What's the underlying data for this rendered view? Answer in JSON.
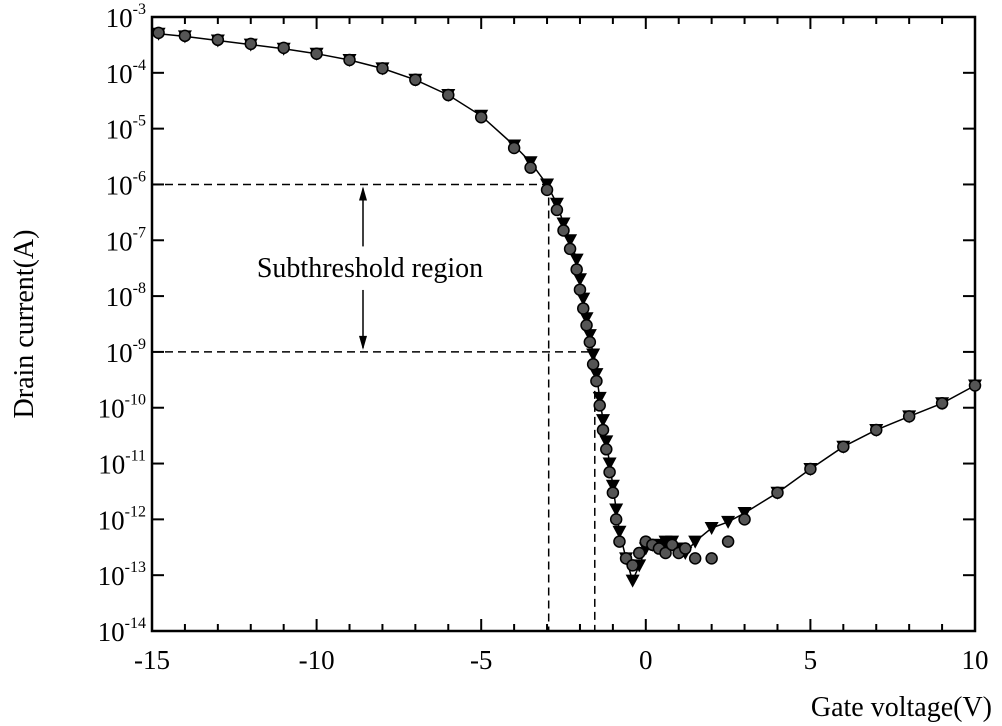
{
  "chart_data": {
    "type": "scatter",
    "xlabel": "Gate voltage(V)",
    "ylabel": "Drain current(A)",
    "xlim": [
      -15,
      10
    ],
    "ylim_exponent": [
      -14,
      -3
    ],
    "yscale": "log",
    "x_ticks": [
      "-15",
      "-10",
      "-5",
      "0",
      "5",
      "10"
    ],
    "y_ticks": [
      {
        "base": "10",
        "exp": "-3"
      },
      {
        "base": "10",
        "exp": "-4"
      },
      {
        "base": "10",
        "exp": "-5"
      },
      {
        "base": "10",
        "exp": "-6"
      },
      {
        "base": "10",
        "exp": "-7"
      },
      {
        "base": "10",
        "exp": "-8"
      },
      {
        "base": "10",
        "exp": "-9"
      },
      {
        "base": "10",
        "exp": "-10"
      },
      {
        "base": "10",
        "exp": "-11"
      },
      {
        "base": "10",
        "exp": "-12"
      },
      {
        "base": "10",
        "exp": "-13"
      },
      {
        "base": "10",
        "exp": "-14"
      }
    ],
    "annotation": {
      "text": "Subthreshold region",
      "y_upper": 1e-06,
      "y_lower": 1e-09,
      "x_upper": -2.95,
      "x_lower": -1.55
    },
    "series": [
      {
        "marker": "triangle-down",
        "x": [
          -14.8,
          -14,
          -13,
          -12,
          -11,
          -10,
          -9,
          -8,
          -7,
          -6,
          -5,
          -4,
          -3.5,
          -3,
          -2.7,
          -2.5,
          -2.3,
          -2.1,
          -2,
          -1.9,
          -1.8,
          -1.7,
          -1.6,
          -1.5,
          -1.4,
          -1.3,
          -1.2,
          -1.1,
          -1,
          -0.9,
          -0.8,
          -0.6,
          -0.4,
          -0.2,
          0,
          0.2,
          0.4,
          0.6,
          0.8,
          1,
          1.2,
          1.5,
          2,
          2.5,
          3,
          4,
          5,
          6,
          7,
          8,
          9,
          10
        ],
        "y": [
          0.0005,
          0.00045,
          0.00038,
          0.00032,
          0.00027,
          0.00022,
          0.00017,
          0.00012,
          7.5e-05,
          4e-05,
          1.7e-05,
          5e-06,
          2.5e-06,
          1e-06,
          4.5e-07,
          2e-07,
          1e-07,
          4.5e-08,
          2e-08,
          9e-09,
          4e-09,
          2e-09,
          9e-10,
          4e-10,
          1.5e-10,
          6e-11,
          2.5e-11,
          1e-11,
          4e-12,
          1.5e-12,
          6e-13,
          2e-13,
          8e-14,
          1.5e-13,
          3e-13,
          3.5e-13,
          3.5e-13,
          4e-13,
          4e-13,
          3e-13,
          2.5e-13,
          4e-13,
          7e-13,
          9e-13,
          1.3e-12,
          3e-12,
          8e-12,
          2e-11,
          4e-11,
          7e-11,
          1.2e-10,
          2.5e-10
        ]
      },
      {
        "marker": "circle",
        "x": [
          -14.8,
          -14,
          -13,
          -12,
          -11,
          -10,
          -9,
          -8,
          -7,
          -6,
          -5,
          -4,
          -3.5,
          -3,
          -2.7,
          -2.5,
          -2.3,
          -2.1,
          -2,
          -1.9,
          -1.8,
          -1.7,
          -1.6,
          -1.5,
          -1.4,
          -1.3,
          -1.2,
          -1.1,
          -1,
          -0.9,
          -0.8,
          -0.6,
          -0.4,
          -0.2,
          0,
          0.2,
          0.4,
          0.6,
          0.8,
          1,
          1.2,
          1.5,
          2,
          2.5,
          3,
          4,
          5,
          6,
          7,
          8,
          9,
          10
        ],
        "y": [
          0.00052,
          0.00046,
          0.00039,
          0.00033,
          0.00028,
          0.00022,
          0.00017,
          0.00012,
          7.5e-05,
          4e-05,
          1.6e-05,
          4.5e-06,
          2e-06,
          8e-07,
          3.5e-07,
          1.5e-07,
          7e-08,
          3e-08,
          1.3e-08,
          6e-09,
          3e-09,
          1.5e-09,
          6e-10,
          3e-10,
          1.1e-10,
          4e-11,
          1.8e-11,
          7e-12,
          3e-12,
          1e-12,
          4e-13,
          2e-13,
          1.5e-13,
          2.5e-13,
          4e-13,
          3.5e-13,
          3e-13,
          2.5e-13,
          3.5e-13,
          2.5e-13,
          3e-13,
          2e-13,
          2e-13,
          4e-13,
          1e-12,
          3e-12,
          8e-12,
          2e-11,
          4e-11,
          7e-11,
          1.2e-10,
          2.5e-10
        ]
      }
    ]
  }
}
